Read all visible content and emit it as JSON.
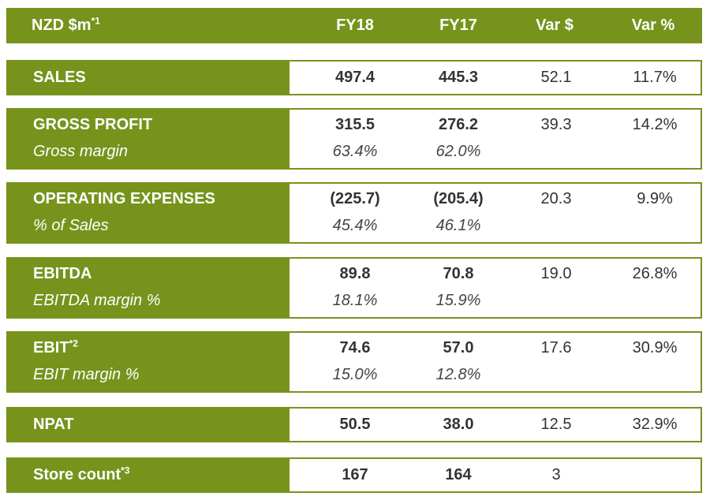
{
  "header": {
    "label": "NZD $m",
    "label_note": "*1",
    "fy18": "FY18",
    "fy17": "FY17",
    "var_dollar": "Var $",
    "var_pct": "Var %"
  },
  "rows": [
    {
      "label": "SALES",
      "fy18": "497.4",
      "fy17": "445.3",
      "var_dollar": "52.1",
      "var_pct": "11.7%"
    },
    {
      "label": "GROSS PROFIT",
      "sub_label": "Gross margin",
      "fy18": "315.5",
      "fy17": "276.2",
      "fy18_sub": "63.4%",
      "fy17_sub": "62.0%",
      "var_dollar": "39.3",
      "var_pct": "14.2%"
    },
    {
      "label": "OPERATING EXPENSES",
      "sub_label": "% of Sales",
      "fy18": "(225.7)",
      "fy17": "(205.4)",
      "fy18_sub": "45.4%",
      "fy17_sub": "46.1%",
      "var_dollar": "20.3",
      "var_pct": "9.9%"
    },
    {
      "label": "EBITDA",
      "sub_label": "EBITDA margin %",
      "fy18": "89.8",
      "fy17": "70.8",
      "fy18_sub": "18.1%",
      "fy17_sub": "15.9%",
      "var_dollar": "19.0",
      "var_pct": "26.8%"
    },
    {
      "label": "EBIT",
      "label_note": "*2",
      "sub_label": "EBIT margin %",
      "fy18": "74.6",
      "fy17": "57.0",
      "fy18_sub": "15.0%",
      "fy17_sub": "12.8%",
      "var_dollar": "17.6",
      "var_pct": "30.9%"
    },
    {
      "label": "NPAT",
      "fy18": "50.5",
      "fy17": "38.0",
      "var_dollar": "12.5",
      "var_pct": "32.9%"
    },
    {
      "label": "Store count",
      "label_note": "*3",
      "fy18": "167",
      "fy17": "164",
      "var_dollar": "3",
      "var_pct": ""
    }
  ],
  "colors": {
    "brand_green": "#77931c",
    "text_dark": "#333333",
    "white": "#ffffff"
  }
}
